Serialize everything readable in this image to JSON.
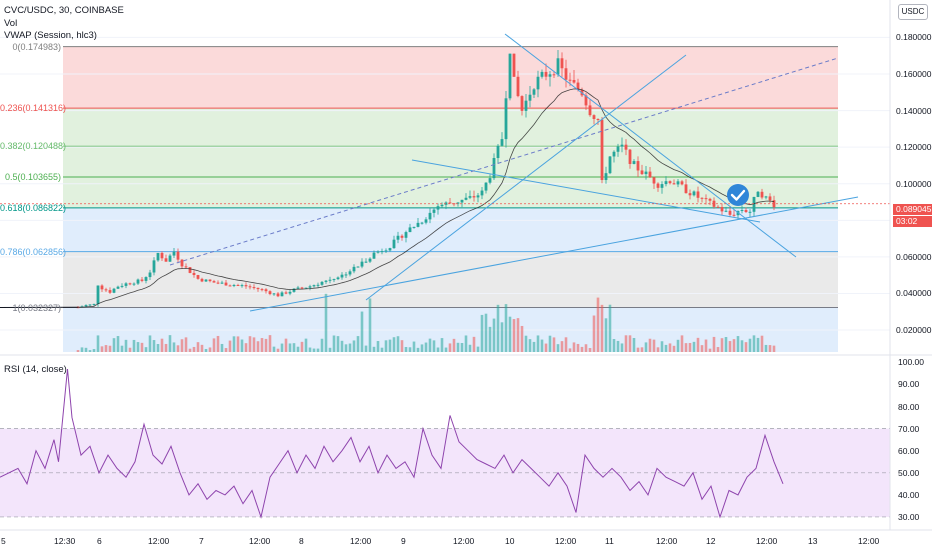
{
  "header": {
    "symbol": "CVC/USDC, 30, COINBASE",
    "volume": "Vol",
    "vwap": "VWAP (Session, hlc3)"
  },
  "currency_button": "USDC",
  "last_price": {
    "value": "0.089045",
    "countdown": "03:02"
  },
  "colors": {
    "up": "#26a69a",
    "down": "#ef5350",
    "rsi": "#8e44ad",
    "rsi_band": "#f3e5fb",
    "fib_red": "#fad4d4",
    "fib_green": "#dcefd8",
    "fib_blue": "#dbeafb",
    "fib_grey": "#e6e6e6",
    "trendline": "#4aa3df"
  },
  "chart_data": [
    {
      "type": "candlestick",
      "title": "",
      "price_axis": {
        "ticks": [
          "0.180000",
          "0.160000",
          "0.140000",
          "0.120000",
          "0.100000",
          "0.080000",
          "0.060000",
          "0.040000",
          "0.020000"
        ],
        "ylim": [
          0.008,
          0.195
        ]
      },
      "time_axis": {
        "ticks": [
          "5",
          "12:30",
          "6",
          "12:00",
          "7",
          "12:00",
          "8",
          "12:00",
          "9",
          "12:00",
          "10",
          "12:00",
          "11",
          "12:00",
          "12",
          "12:00",
          "13",
          "12:00"
        ]
      },
      "fibonacci_retracement": [
        {
          "level": "0",
          "price": "0.174983",
          "label": "0(0.174983)"
        },
        {
          "level": "0.236",
          "price": "0.141316",
          "label": "0.236(0.141316)"
        },
        {
          "level": "0.382",
          "price": "0.120488",
          "label": "0.382(0.120488)"
        },
        {
          "level": "0.5",
          "price": "0.103655",
          "label": "0.5(0.103655)"
        },
        {
          "level": "0.618",
          "price": "0.086822",
          "label": "0.618(0.086822)"
        },
        {
          "level": "0.786",
          "price": "0.062856",
          "label": "0.786(0.062856)"
        },
        {
          "level": "1",
          "price": "0.032327",
          "label": "1(0.032327)"
        }
      ],
      "price_path": [
        [
          0,
          0.0325
        ],
        [
          2,
          0.0335
        ],
        [
          4,
          0.034
        ],
        [
          5,
          0.045
        ],
        [
          6,
          0.043
        ],
        [
          8,
          0.041
        ],
        [
          10,
          0.044
        ],
        [
          13,
          0.046
        ],
        [
          16,
          0.047
        ],
        [
          18,
          0.052
        ],
        [
          20,
          0.062
        ],
        [
          22,
          0.058
        ],
        [
          24,
          0.063
        ],
        [
          26,
          0.056
        ],
        [
          28,
          0.052
        ],
        [
          30,
          0.048
        ],
        [
          34,
          0.046
        ],
        [
          38,
          0.045
        ],
        [
          42,
          0.044
        ],
        [
          46,
          0.042
        ],
        [
          50,
          0.039
        ],
        [
          54,
          0.042
        ],
        [
          58,
          0.044
        ],
        [
          62,
          0.047
        ],
        [
          66,
          0.05
        ],
        [
          70,
          0.055
        ],
        [
          74,
          0.062
        ],
        [
          78,
          0.066
        ],
        [
          82,
          0.074
        ],
        [
          86,
          0.08
        ],
        [
          90,
          0.088
        ],
        [
          94,
          0.09
        ],
        [
          98,
          0.092
        ],
        [
          101,
          0.095
        ],
        [
          103,
          0.105
        ],
        [
          106,
          0.125
        ],
        [
          107,
          0.15
        ],
        [
          108,
          0.175
        ],
        [
          109,
          0.155
        ],
        [
          111,
          0.14
        ],
        [
          114,
          0.155
        ],
        [
          117,
          0.16
        ],
        [
          120,
          0.165
        ],
        [
          123,
          0.155
        ],
        [
          126,
          0.15
        ],
        [
          128,
          0.14
        ],
        [
          130,
          0.135
        ],
        [
          131,
          0.1
        ],
        [
          133,
          0.115
        ],
        [
          136,
          0.12
        ],
        [
          139,
          0.11
        ],
        [
          142,
          0.105
        ],
        [
          145,
          0.1
        ],
        [
          148,
          0.102
        ],
        [
          151,
          0.098
        ],
        [
          154,
          0.094
        ],
        [
          157,
          0.09
        ],
        [
          160,
          0.087
        ],
        [
          163,
          0.083
        ],
        [
          166,
          0.086
        ],
        [
          168,
          0.085
        ],
        [
          170,
          0.097
        ],
        [
          172,
          0.092
        ],
        [
          174,
          0.089
        ]
      ],
      "vwap_note": "session VWAP line drawn over candles"
    },
    {
      "type": "line",
      "title": "RSI (14, close)",
      "ylabel": "",
      "y_ticks": [
        "100.00",
        "90.00",
        "80.00",
        "70.00",
        "60.00",
        "50.00",
        "40.00",
        "30.00"
      ],
      "ylim": [
        25,
        102
      ],
      "band": [
        30,
        70
      ],
      "points": [
        [
          0,
          48
        ],
        [
          4,
          52
        ],
        [
          6,
          45
        ],
        [
          8,
          60
        ],
        [
          10,
          52
        ],
        [
          12,
          65
        ],
        [
          13,
          55
        ],
        [
          15,
          97
        ],
        [
          16,
          75
        ],
        [
          18,
          58
        ],
        [
          20,
          62
        ],
        [
          22,
          50
        ],
        [
          24,
          58
        ],
        [
          26,
          52
        ],
        [
          28,
          48
        ],
        [
          30,
          55
        ],
        [
          32,
          72
        ],
        [
          34,
          58
        ],
        [
          36,
          54
        ],
        [
          38,
          62
        ],
        [
          40,
          50
        ],
        [
          42,
          40
        ],
        [
          44,
          45
        ],
        [
          46,
          38
        ],
        [
          48,
          42
        ],
        [
          50,
          40
        ],
        [
          52,
          44
        ],
        [
          54,
          36
        ],
        [
          56,
          42
        ],
        [
          58,
          30
        ],
        [
          60,
          48
        ],
        [
          62,
          54
        ],
        [
          64,
          60
        ],
        [
          66,
          50
        ],
        [
          68,
          58
        ],
        [
          70,
          52
        ],
        [
          72,
          62
        ],
        [
          74,
          55
        ],
        [
          76,
          60
        ],
        [
          78,
          66
        ],
        [
          80,
          55
        ],
        [
          82,
          62
        ],
        [
          84,
          50
        ],
        [
          86,
          58
        ],
        [
          88,
          52
        ],
        [
          90,
          55
        ],
        [
          92,
          48
        ],
        [
          94,
          70
        ],
        [
          96,
          58
        ],
        [
          98,
          52
        ],
        [
          100,
          76
        ],
        [
          102,
          64
        ],
        [
          104,
          60
        ],
        [
          106,
          56
        ],
        [
          108,
          54
        ],
        [
          110,
          52
        ],
        [
          112,
          58
        ],
        [
          114,
          50
        ],
        [
          116,
          56
        ],
        [
          118,
          52
        ],
        [
          120,
          48
        ],
        [
          122,
          44
        ],
        [
          124,
          50
        ],
        [
          126,
          44
        ],
        [
          128,
          32
        ],
        [
          130,
          58
        ],
        [
          132,
          52
        ],
        [
          134,
          48
        ],
        [
          136,
          52
        ],
        [
          138,
          48
        ],
        [
          140,
          42
        ],
        [
          142,
          46
        ],
        [
          144,
          40
        ],
        [
          146,
          52
        ],
        [
          148,
          48
        ],
        [
          150,
          46
        ],
        [
          152,
          44
        ],
        [
          154,
          50
        ],
        [
          156,
          38
        ],
        [
          158,
          44
        ],
        [
          160,
          30
        ],
        [
          162,
          42
        ],
        [
          164,
          40
        ],
        [
          166,
          48
        ],
        [
          168,
          52
        ],
        [
          170,
          67
        ],
        [
          172,
          55
        ],
        [
          174,
          45
        ]
      ]
    }
  ]
}
